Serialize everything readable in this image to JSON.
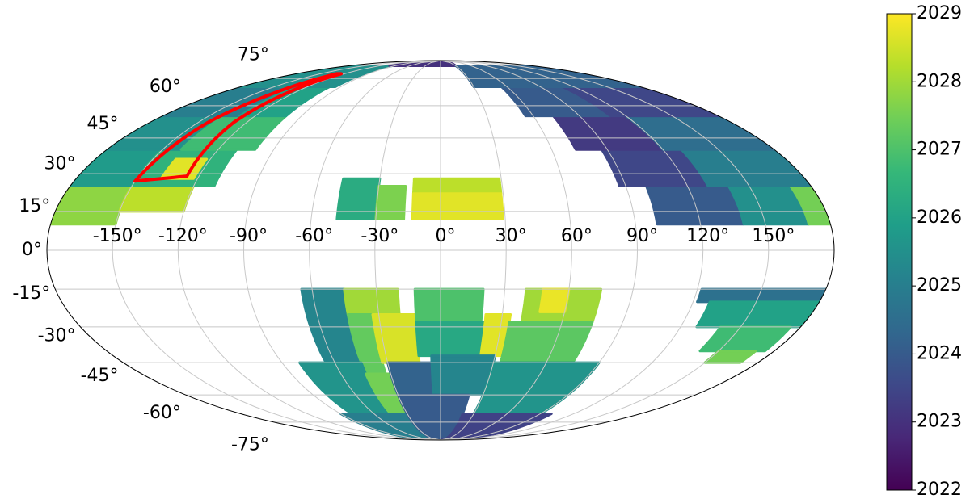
{
  "chart_data": {
    "type": "mollweide",
    "clim": [
      2022,
      2029
    ],
    "cticks": [
      2022,
      2023,
      2024,
      2025,
      2026,
      2027,
      2028,
      2029
    ],
    "colormap": [
      "#440154",
      "#482878",
      "#3e4989",
      "#31688e",
      "#26828e",
      "#1f9e89",
      "#35b779",
      "#6ece58",
      "#b5de2b",
      "#fde725"
    ],
    "grid": true,
    "xticks": [
      {
        "value": -150,
        "label": "-150°"
      },
      {
        "value": -120,
        "label": "-120°"
      },
      {
        "value": -90,
        "label": "-90°"
      },
      {
        "value": -60,
        "label": "-60°"
      },
      {
        "value": -30,
        "label": "-30°"
      },
      {
        "value": 0,
        "label": "0°"
      },
      {
        "value": 30,
        "label": "30°"
      },
      {
        "value": 60,
        "label": "60°"
      },
      {
        "value": 90,
        "label": "90°"
      },
      {
        "value": 120,
        "label": "120°"
      },
      {
        "value": 150,
        "label": "150°"
      }
    ],
    "yticks": [
      {
        "value": -75,
        "label": "-75°"
      },
      {
        "value": -60,
        "label": "-60°"
      },
      {
        "value": -45,
        "label": "-45°"
      },
      {
        "value": -30,
        "label": "-30°"
      },
      {
        "value": -15,
        "label": "-15°"
      },
      {
        "value": 0,
        "label": "0°"
      },
      {
        "value": 15,
        "label": "15°"
      },
      {
        "value": 30,
        "label": "30°"
      },
      {
        "value": 45,
        "label": "45°"
      },
      {
        "value": 60,
        "label": "60°"
      },
      {
        "value": 75,
        "label": "75°"
      }
    ],
    "regions": [
      {
        "lon": [
          -180,
          -150
        ],
        "lat": [
          10,
          25
        ],
        "value": 2027.8
      },
      {
        "lon": [
          -150,
          -120
        ],
        "lat": [
          15,
          25
        ],
        "value": 2028.3
      },
      {
        "lon": [
          -180,
          -150
        ],
        "lat": [
          25,
          40
        ],
        "value": 2025.8
      },
      {
        "lon": [
          -150,
          -110
        ],
        "lat": [
          25,
          40
        ],
        "value": 2026.5
      },
      {
        "lon": [
          -138,
          -122
        ],
        "lat": [
          28,
          36
        ],
        "value": 2028.7
      },
      {
        "lon": [
          -180,
          -140
        ],
        "lat": [
          40,
          55
        ],
        "value": 2025.5
      },
      {
        "lon": [
          -140,
          -100
        ],
        "lat": [
          40,
          55
        ],
        "value": 2026.8
      },
      {
        "lon": [
          -180,
          -130
        ],
        "lat": [
          55,
          70
        ],
        "value": 2025
      },
      {
        "lon": [
          -130,
          -100
        ],
        "lat": [
          55,
          70
        ],
        "value": 2026
      },
      {
        "lon": [
          -180,
          -95
        ],
        "lat": [
          70,
          84
        ],
        "value": 2025.5
      },
      {
        "lon": [
          -100,
          30
        ],
        "lat": [
          84,
          90
        ],
        "value": 2023
      },
      {
        "lon": [
          100,
          140
        ],
        "lat": [
          10,
          25
        ],
        "value": 2024
      },
      {
        "lon": [
          140,
          170
        ],
        "lat": [
          10,
          25
        ],
        "value": 2025.5
      },
      {
        "lon": [
          170,
          180
        ],
        "lat": [
          10,
          25
        ],
        "value": 2027.5
      },
      {
        "lon": [
          87,
          130
        ],
        "lat": [
          25,
          40
        ],
        "value": 2023.5
      },
      {
        "lon": [
          130,
          180
        ],
        "lat": [
          25,
          40
        ],
        "value": 2025
      },
      {
        "lon": [
          73,
          120
        ],
        "lat": [
          40,
          55
        ],
        "value": 2023.2
      },
      {
        "lon": [
          120,
          180
        ],
        "lat": [
          40,
          55
        ],
        "value": 2024.5
      },
      {
        "lon": [
          55,
          110
        ],
        "lat": [
          55,
          70
        ],
        "value": 2024
      },
      {
        "lon": [
          110,
          180
        ],
        "lat": [
          55,
          70
        ],
        "value": 2023.5
      },
      {
        "lon": [
          30,
          180
        ],
        "lat": [
          70,
          84
        ],
        "value": 2024.2
      },
      {
        "lon": [
          -48,
          -30
        ],
        "lat": [
          12,
          28
        ],
        "value": 2026.3
      },
      {
        "lon": [
          -30,
          -17
        ],
        "lat": [
          12,
          25
        ],
        "value": 2027.6
      },
      {
        "lon": [
          -13,
          29
        ],
        "lat": [
          22,
          28
        ],
        "value": 2028.3
      },
      {
        "lon": [
          -13,
          29
        ],
        "lat": [
          12,
          22
        ],
        "value": 2028.7
      },
      {
        "lon": [
          -65,
          -45
        ],
        "lat": [
          -45,
          -15
        ],
        "value": 2025.2
      },
      {
        "lon": [
          -45,
          -20
        ],
        "lat": [
          -25,
          -15
        ],
        "value": 2028
      },
      {
        "lon": [
          -45,
          -33
        ],
        "lat": [
          -50,
          -25
        ],
        "value": 2027.3
      },
      {
        "lon": [
          -33,
          -12
        ],
        "lat": [
          -45,
          -25
        ],
        "value": 2028.6
      },
      {
        "lon": [
          -12,
          20
        ],
        "lat": [
          -28,
          -15
        ],
        "value": 2027
      },
      {
        "lon": [
          -12,
          22
        ],
        "lat": [
          -42,
          -28
        ],
        "value": 2026.2
      },
      {
        "lon": [
          22,
          34
        ],
        "lat": [
          -42,
          -25
        ],
        "value": 2028.7
      },
      {
        "lon": [
          40,
          75
        ],
        "lat": [
          -28,
          -15
        ],
        "value": 2028
      },
      {
        "lon": [
          48,
          60
        ],
        "lat": [
          -24,
          -15
        ],
        "value": 2028.8
      },
      {
        "lon": [
          34,
          75
        ],
        "lat": [
          -45,
          -28
        ],
        "value": 2027.2
      },
      {
        "lon": [
          -80,
          -45
        ],
        "lat": [
          -70,
          -45
        ],
        "value": 2025.6
      },
      {
        "lon": [
          -45,
          -30
        ],
        "lat": [
          -75,
          -50
        ],
        "value": 2027.5
      },
      {
        "lon": [
          -30,
          -5
        ],
        "lat": [
          -60,
          -45
        ],
        "value": 2024.2
      },
      {
        "lon": [
          -5,
          30
        ],
        "lat": [
          -60,
          -42
        ],
        "value": 2025.2
      },
      {
        "lon": [
          30,
          90
        ],
        "lat": [
          -70,
          -45
        ],
        "value": 2025.6
      },
      {
        "lon": [
          -90,
          -30
        ],
        "lat": [
          -90,
          -70
        ],
        "value": 2025
      },
      {
        "lon": [
          -30,
          20
        ],
        "lat": [
          -90,
          -60
        ],
        "value": 2024
      },
      {
        "lon": [
          20,
          100
        ],
        "lat": [
          -90,
          -70
        ],
        "value": 2023.4
      },
      {
        "lon": [
          122,
          180
        ],
        "lat": [
          -20,
          -15
        ],
        "value": 2024.6
      },
      {
        "lon": [
          128,
          180
        ],
        "lat": [
          -30,
          -20
        ],
        "value": 2026
      },
      {
        "lon": [
          140,
          175
        ],
        "lat": [
          -40,
          -30
        ],
        "value": 2026.8
      },
      {
        "lon": [
          150,
          170
        ],
        "lat": [
          -45,
          -40
        ],
        "value": 2027.5
      }
    ],
    "highlight": {
      "color": "#ff0000",
      "lon": [
        -150,
        -126,
        -128,
        -124,
        -130,
        -144
      ],
      "lat": [
        27,
        29,
        52,
        78,
        78,
        52
      ]
    }
  }
}
